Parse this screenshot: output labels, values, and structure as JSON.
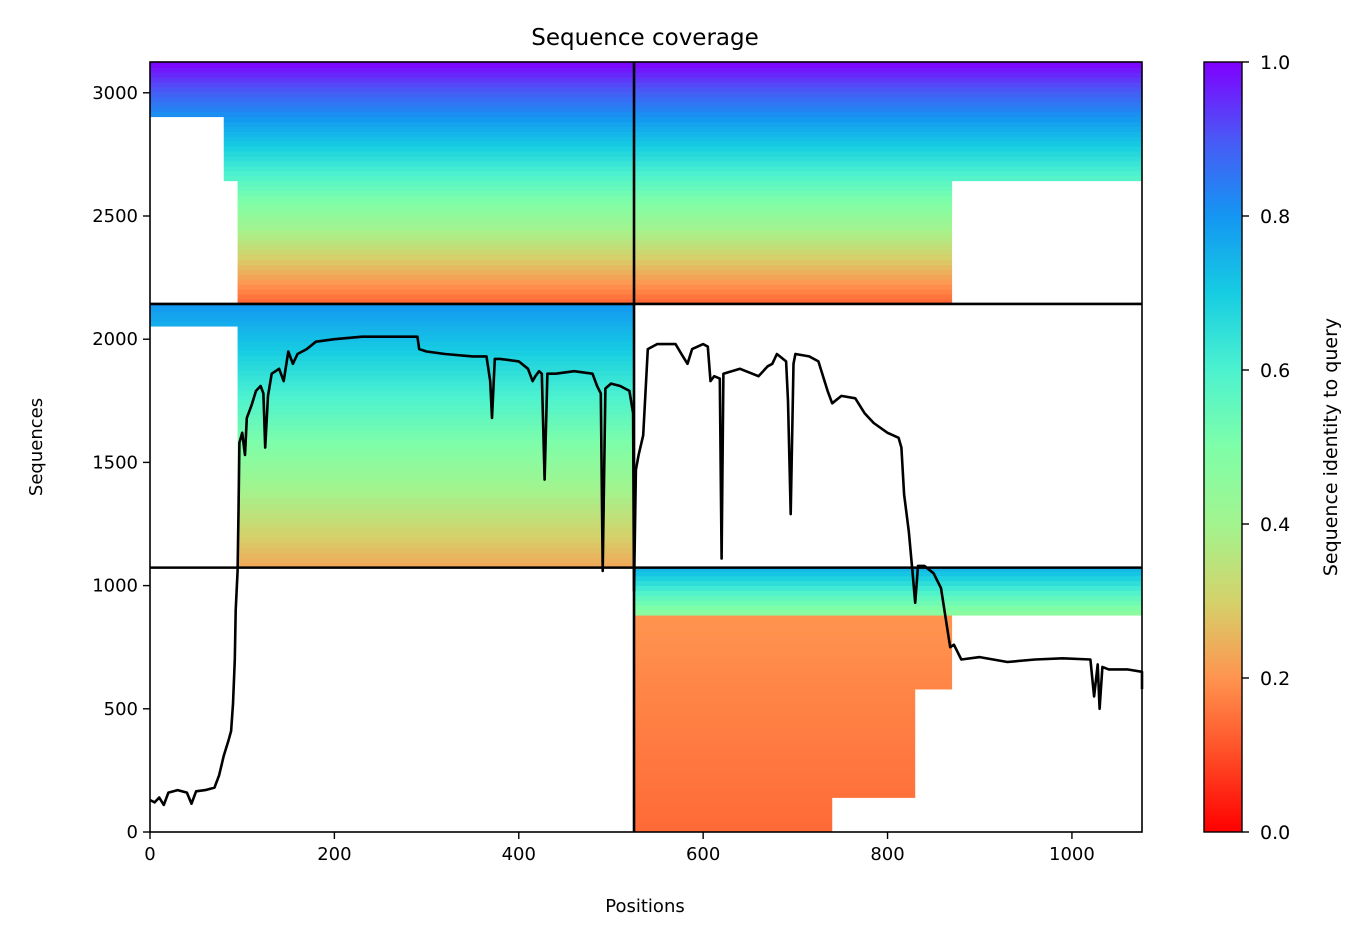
{
  "chart_data": {
    "type": "heatmap",
    "title": "Sequence coverage",
    "xlabel": "Positions",
    "ylabel": "Sequences",
    "xlim": [
      0,
      1076
    ],
    "ylim": [
      0,
      3125
    ],
    "x_ticks": [
      0,
      200,
      400,
      600,
      800,
      1000
    ],
    "y_ticks": [
      0,
      500,
      1000,
      1500,
      2000,
      2500,
      3000
    ],
    "grid": false,
    "colorbar": {
      "label": "Sequence identity to query",
      "range": [
        0,
        1
      ],
      "ticks": [
        "0.0",
        "0.2",
        "0.4",
        "0.6",
        "0.8",
        "1.0"
      ],
      "colormap": "rainbow"
    },
    "divider_lines": {
      "vertical_x": 525,
      "horizontal_y": [
        1073,
        2143
      ]
    },
    "coverage_line": {
      "name": "",
      "points": [
        [
          0,
          130
        ],
        [
          5,
          120
        ],
        [
          10,
          140
        ],
        [
          15,
          110
        ],
        [
          20,
          160
        ],
        [
          30,
          170
        ],
        [
          40,
          160
        ],
        [
          45,
          115
        ],
        [
          50,
          165
        ],
        [
          60,
          170
        ],
        [
          70,
          180
        ],
        [
          75,
          230
        ],
        [
          80,
          310
        ],
        [
          85,
          370
        ],
        [
          88,
          410
        ],
        [
          90,
          520
        ],
        [
          92,
          700
        ],
        [
          93,
          900
        ],
        [
          95,
          1060
        ],
        [
          96,
          1300
        ],
        [
          97,
          1580
        ],
        [
          100,
          1620
        ],
        [
          103,
          1530
        ],
        [
          105,
          1680
        ],
        [
          110,
          1730
        ],
        [
          115,
          1790
        ],
        [
          120,
          1810
        ],
        [
          123,
          1780
        ],
        [
          125,
          1560
        ],
        [
          128,
          1770
        ],
        [
          132,
          1860
        ],
        [
          140,
          1880
        ],
        [
          145,
          1830
        ],
        [
          150,
          1950
        ],
        [
          155,
          1900
        ],
        [
          160,
          1940
        ],
        [
          170,
          1960
        ],
        [
          180,
          1990
        ],
        [
          200,
          2000
        ],
        [
          230,
          2010
        ],
        [
          260,
          2010
        ],
        [
          290,
          2010
        ],
        [
          292,
          1960
        ],
        [
          300,
          1950
        ],
        [
          320,
          1940
        ],
        [
          350,
          1930
        ],
        [
          365,
          1930
        ],
        [
          369,
          1830
        ],
        [
          371,
          1680
        ],
        [
          374,
          1920
        ],
        [
          380,
          1920
        ],
        [
          400,
          1910
        ],
        [
          410,
          1880
        ],
        [
          415,
          1830
        ],
        [
          418,
          1850
        ],
        [
          422,
          1870
        ],
        [
          425,
          1860
        ],
        [
          428,
          1430
        ],
        [
          431,
          1860
        ],
        [
          440,
          1860
        ],
        [
          460,
          1870
        ],
        [
          480,
          1860
        ],
        [
          485,
          1810
        ],
        [
          489,
          1780
        ],
        [
          491,
          1060
        ],
        [
          494,
          1800
        ],
        [
          500,
          1820
        ],
        [
          510,
          1810
        ],
        [
          520,
          1790
        ],
        [
          524,
          1700
        ],
        [
          525,
          980
        ],
        [
          527,
          1470
        ],
        [
          530,
          1530
        ],
        [
          535,
          1610
        ],
        [
          540,
          1960
        ],
        [
          550,
          1980
        ],
        [
          570,
          1980
        ],
        [
          578,
          1930
        ],
        [
          583,
          1900
        ],
        [
          588,
          1960
        ],
        [
          600,
          1980
        ],
        [
          605,
          1970
        ],
        [
          608,
          1830
        ],
        [
          612,
          1850
        ],
        [
          618,
          1840
        ],
        [
          620,
          1110
        ],
        [
          622,
          1860
        ],
        [
          640,
          1880
        ],
        [
          660,
          1850
        ],
        [
          670,
          1890
        ],
        [
          675,
          1900
        ],
        [
          680,
          1940
        ],
        [
          690,
          1910
        ],
        [
          692,
          1750
        ],
        [
          695,
          1290
        ],
        [
          698,
          1900
        ],
        [
          700,
          1940
        ],
        [
          715,
          1930
        ],
        [
          725,
          1910
        ],
        [
          735,
          1790
        ],
        [
          740,
          1740
        ],
        [
          750,
          1770
        ],
        [
          765,
          1760
        ],
        [
          775,
          1700
        ],
        [
          785,
          1660
        ],
        [
          800,
          1620
        ],
        [
          812,
          1600
        ],
        [
          815,
          1560
        ],
        [
          818,
          1370
        ],
        [
          823,
          1220
        ],
        [
          827,
          1060
        ],
        [
          830,
          930
        ],
        [
          833,
          1080
        ],
        [
          840,
          1080
        ],
        [
          850,
          1050
        ],
        [
          858,
          990
        ],
        [
          865,
          820
        ],
        [
          868,
          750
        ],
        [
          872,
          760
        ],
        [
          880,
          700
        ],
        [
          900,
          710
        ],
        [
          930,
          690
        ],
        [
          960,
          700
        ],
        [
          990,
          705
        ],
        [
          1020,
          700
        ],
        [
          1024,
          550
        ],
        [
          1028,
          680
        ],
        [
          1030,
          500
        ],
        [
          1033,
          670
        ],
        [
          1040,
          660
        ],
        [
          1060,
          660
        ],
        [
          1076,
          650
        ],
        [
          1076,
          580
        ]
      ]
    }
  }
}
